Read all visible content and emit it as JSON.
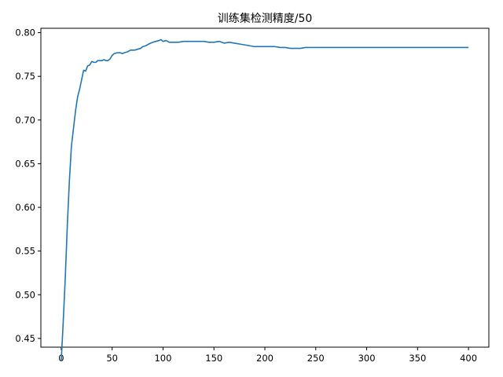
{
  "chart_data": {
    "type": "line",
    "title": "训练集检测精度/50",
    "xlabel": "",
    "ylabel": "",
    "xlim": [
      -20,
      420
    ],
    "ylim": [
      0.44,
      0.805
    ],
    "xticks": [
      0,
      50,
      100,
      150,
      200,
      250,
      300,
      350,
      400
    ],
    "yticks": [
      0.45,
      0.5,
      0.55,
      0.6,
      0.65,
      0.7,
      0.75,
      0.8
    ],
    "xtick_labels": [
      "0",
      "50",
      "100",
      "150",
      "200",
      "250",
      "300",
      "350",
      "400"
    ],
    "ytick_labels": [
      "0.45",
      "0.50",
      "0.55",
      "0.60",
      "0.65",
      "0.70",
      "0.75",
      "0.80"
    ],
    "grid": false,
    "line_color": "#1f77b4",
    "series": [
      {
        "x": [
          0,
          2,
          4,
          6,
          8,
          10,
          12,
          14,
          16,
          18,
          20,
          22,
          24,
          26,
          28,
          30,
          32,
          34,
          36,
          38,
          40,
          42,
          44,
          46,
          48,
          50,
          52,
          55,
          58,
          60,
          62,
          65,
          68,
          70,
          72,
          75,
          78,
          80,
          83,
          86,
          88,
          90,
          93,
          96,
          98,
          100,
          103,
          106,
          110,
          115,
          120,
          130,
          140,
          145,
          150,
          155,
          160,
          165,
          170,
          175,
          180,
          185,
          190,
          195,
          200,
          205,
          210,
          215,
          220,
          225,
          230,
          235,
          240,
          260,
          300,
          350,
          400
        ],
        "y": [
          0.424,
          0.47,
          0.52,
          0.58,
          0.63,
          0.67,
          0.69,
          0.71,
          0.726,
          0.735,
          0.746,
          0.757,
          0.756,
          0.762,
          0.763,
          0.767,
          0.766,
          0.766,
          0.768,
          0.768,
          0.768,
          0.769,
          0.768,
          0.768,
          0.77,
          0.774,
          0.776,
          0.777,
          0.777,
          0.776,
          0.777,
          0.778,
          0.78,
          0.78,
          0.78,
          0.781,
          0.782,
          0.784,
          0.785,
          0.787,
          0.788,
          0.789,
          0.79,
          0.791,
          0.792,
          0.79,
          0.791,
          0.789,
          0.789,
          0.789,
          0.79,
          0.79,
          0.79,
          0.789,
          0.789,
          0.79,
          0.788,
          0.789,
          0.788,
          0.787,
          0.786,
          0.785,
          0.784,
          0.784,
          0.784,
          0.784,
          0.784,
          0.783,
          0.783,
          0.782,
          0.782,
          0.782,
          0.783,
          0.783,
          0.783,
          0.783,
          0.783
        ]
      }
    ]
  }
}
